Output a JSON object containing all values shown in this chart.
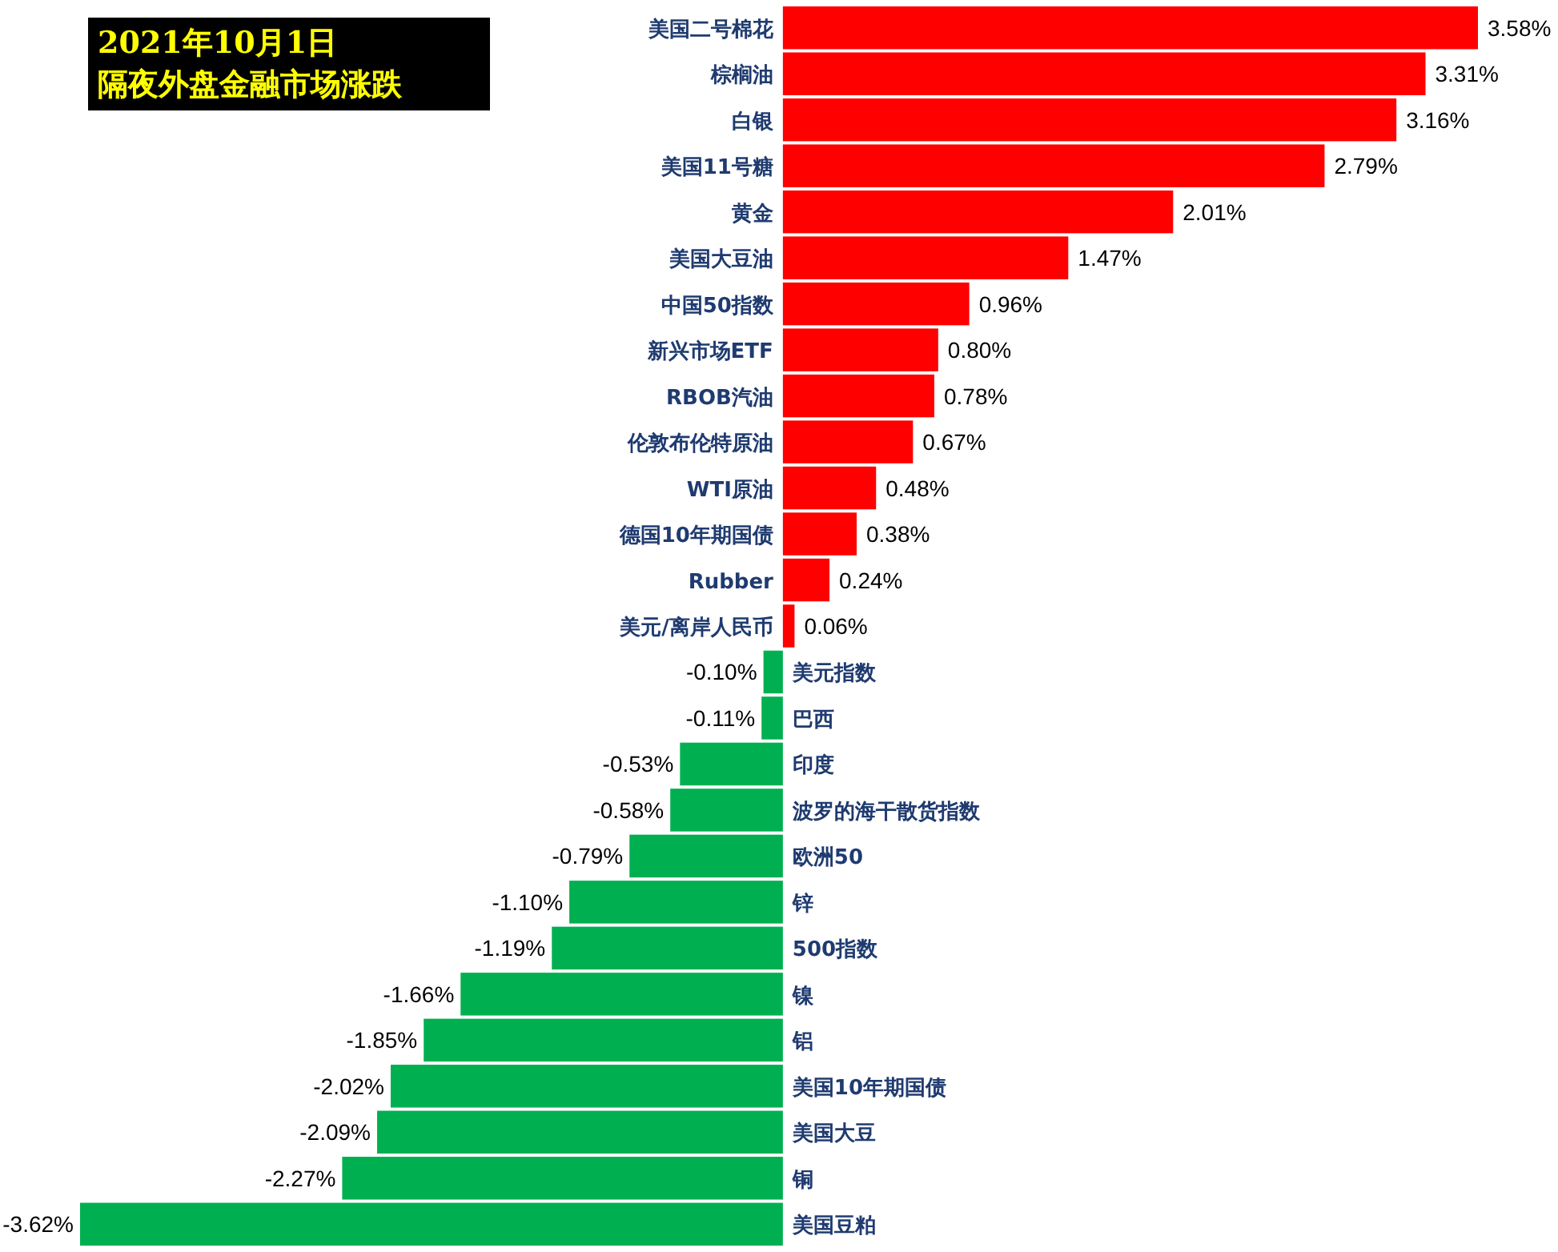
{
  "chart_data": {
    "type": "bar",
    "orientation": "horizontal",
    "title": "2021年10月1日",
    "subtitle": "隔夜外盘金融市场涨跌",
    "categories": [
      "美国二号棉花",
      "棕榈油",
      "白银",
      "美国11号糖",
      "黄金",
      "美国大豆油",
      "中国50指数",
      "新兴市场ETF",
      "RBOB汽油",
      "伦敦布伦特原油",
      "WTI原油",
      "德国10年期国债",
      "Rubber",
      "美元/离岸人民币",
      "美元指数",
      "巴西",
      "印度",
      "波罗的海干散货指数",
      "欧洲50",
      "锌",
      "500指数",
      "镍",
      "铝",
      "美国10年期国债",
      "美国大豆",
      "铜",
      "美国豆粕"
    ],
    "values": [
      3.58,
      3.31,
      3.16,
      2.79,
      2.01,
      1.47,
      0.96,
      0.8,
      0.78,
      0.67,
      0.48,
      0.38,
      0.24,
      0.06,
      -0.1,
      -0.11,
      -0.53,
      -0.58,
      -0.79,
      -1.1,
      -1.19,
      -1.66,
      -1.85,
      -2.02,
      -2.09,
      -2.27,
      -3.62
    ],
    "value_labels": [
      "3.58%",
      "3.31%",
      "3.16%",
      "2.79%",
      "2.01%",
      "1.47%",
      "0.96%",
      "0.80%",
      "0.78%",
      "0.67%",
      "0.48%",
      "0.38%",
      "0.24%",
      "0.06%",
      "-0.10%",
      "-0.11%",
      "-0.53%",
      "-0.58%",
      "-0.79%",
      "-1.10%",
      "-1.19%",
      "-1.66%",
      "-1.85%",
      "-2.02%",
      "-2.09%",
      "-2.27%",
      "-3.62%"
    ],
    "colors": [
      "#ff0000",
      "#ff0000",
      "#ff0000",
      "#ff0000",
      "#ff0000",
      "#ff0000",
      "#ff0000",
      "#ff0000",
      "#ff0000",
      "#ff0000",
      "#ff0000",
      "#ff0000",
      "#ff0000",
      "#ff0000",
      "#00b050",
      "#00b050",
      "#00b050",
      "#00b050",
      "#00b050",
      "#00b050",
      "#00b050",
      "#00b050",
      "#00b050",
      "#00b050",
      "#00b050",
      "#00b050",
      "#00b050"
    ]
  }
}
